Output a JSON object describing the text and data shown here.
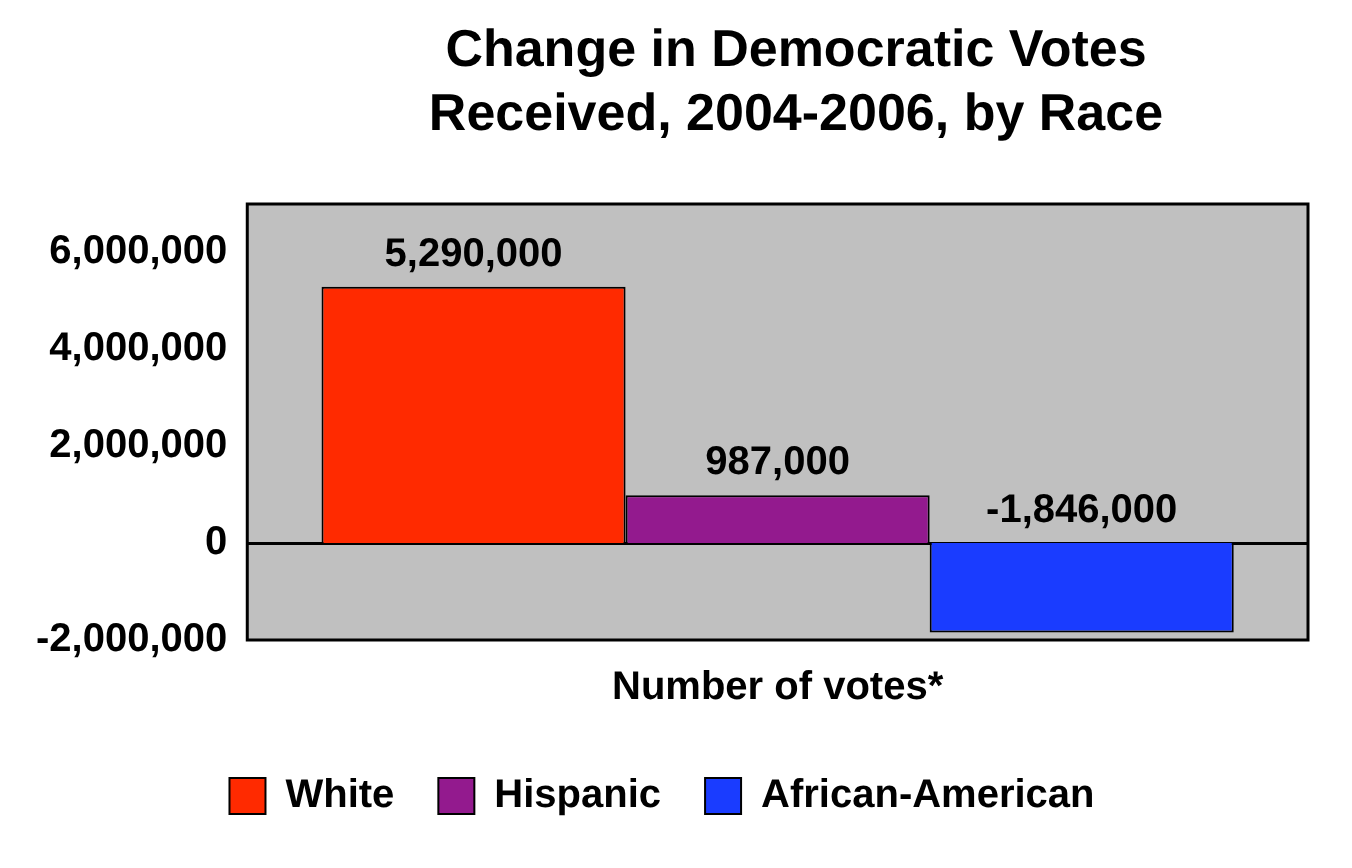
{
  "chart_data": {
    "type": "bar",
    "title": "Change in Democratic Votes Received, 2004-2006, by Race",
    "xlabel": "Number of votes*",
    "categories": [
      null
    ],
    "series": [
      {
        "name": "White",
        "color": "#ff2a00",
        "values": [
          5290000
        ],
        "value_labels": [
          "5,290,000"
        ]
      },
      {
        "name": "Hispanic",
        "color": "#931a8e",
        "values": [
          987000
        ],
        "value_labels": [
          "987,000"
        ]
      },
      {
        "name": "African-American",
        "color": "#1a3cff",
        "values": [
          -1846000
        ],
        "value_labels": [
          "-1,846,000"
        ]
      }
    ],
    "ylim": [
      -2000000,
      7000000
    ],
    "yticks": [
      {
        "value": -2000000,
        "label": "-2,000,000"
      },
      0,
      {
        "value": 2000000,
        "label": "2,000,000"
      },
      {
        "value": 4000000,
        "label": "4,000,000"
      },
      {
        "value": 6000000,
        "label": "6,000,000"
      }
    ],
    "legend": "bottom"
  }
}
